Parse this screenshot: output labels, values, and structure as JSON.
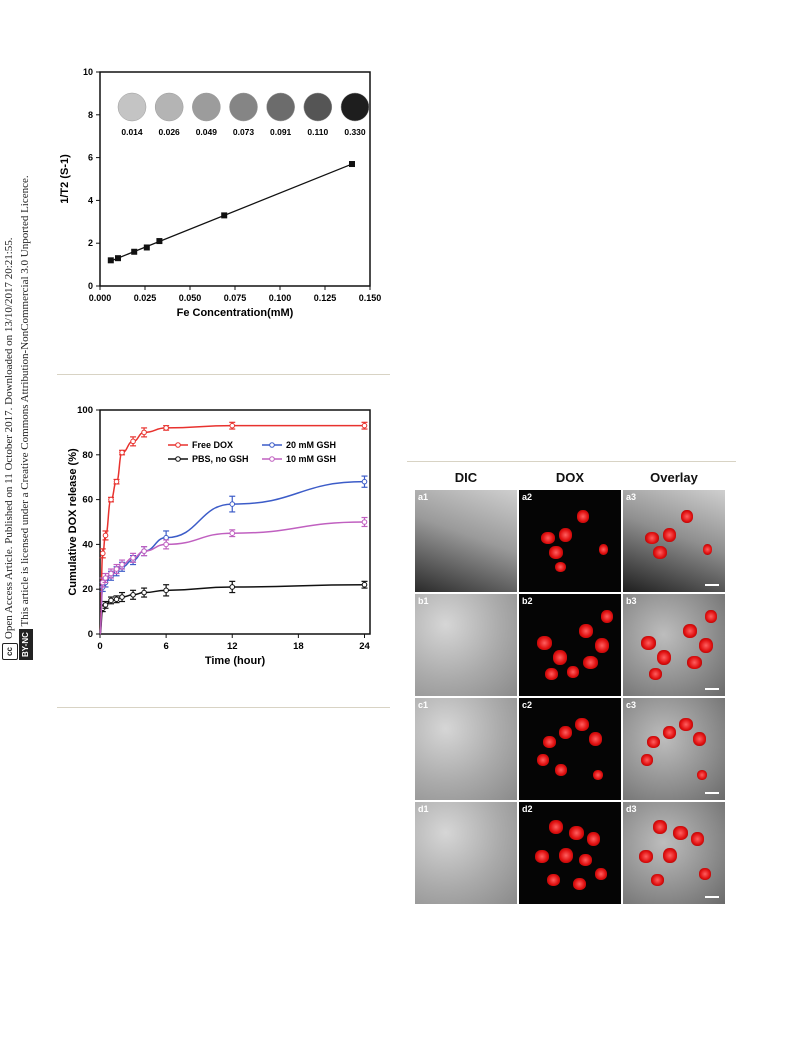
{
  "side_notice": {
    "line1": "Open Access Article. Published on 11 October 2017. Downloaded on 13/10/2017 20:21:55.",
    "line2": "This article is licensed under a Creative Commons Attribution-NonCommercial 3.0 Unported Licence.",
    "cc_badge": "cc",
    "license_badge": "BY-NC"
  },
  "figure_relaxivity": {
    "ylabel": "1/T2 (S-1)",
    "xlabel": "Fe Concentration(mM)",
    "xticks": [
      "0.000",
      "0.025",
      "0.050",
      "0.075",
      "0.100",
      "0.125",
      "0.150"
    ],
    "yticks": [
      "0",
      "2",
      "4",
      "6",
      "8",
      "10"
    ],
    "phantom_labels": [
      "0.014",
      "0.026",
      "0.049",
      "0.073",
      "0.091",
      "0.110",
      "0.330"
    ],
    "phantom_grays": [
      "#c4c4c4",
      "#b4b4b4",
      "#9c9c9c",
      "#858585",
      "#6c6c6c",
      "#555555",
      "#1e1e1e"
    ]
  },
  "figure_release": {
    "ylabel": "Cumulative DOX release (%)",
    "xlabel": "Time (hour)",
    "xticks": [
      "0",
      "6",
      "12",
      "18",
      "24"
    ],
    "yticks": [
      "0",
      "20",
      "40",
      "60",
      "80",
      "100"
    ]
  },
  "figure_micro": {
    "headers": [
      "DIC",
      "DOX",
      "Overlay"
    ],
    "panels": [
      [
        "a1",
        "a2",
        "a3"
      ],
      [
        "b1",
        "b2",
        "b3"
      ],
      [
        "c1",
        "c2",
        "c3"
      ],
      [
        "d1",
        "d2",
        "d3"
      ]
    ]
  },
  "chart_data": [
    {
      "type": "scatter",
      "title": "",
      "xlabel": "Fe Concentration(mM)",
      "ylabel": "1/T2 (S-1)",
      "xlim": [
        0.0,
        0.15
      ],
      "ylim": [
        0,
        10
      ],
      "series": [
        {
          "x": [
            0.006,
            0.01,
            0.019,
            0.026,
            0.033,
            0.069,
            0.14
          ],
          "y": [
            1.2,
            1.3,
            1.6,
            1.8,
            2.1,
            3.3,
            5.7
          ]
        }
      ],
      "fit": "linear"
    },
    {
      "type": "line",
      "title": "",
      "xlabel": "Time (hour)",
      "ylabel": "Cumulative DOX release (%)",
      "xlim": [
        0,
        24.5
      ],
      "ylim": [
        0,
        100
      ],
      "legend": "top-right",
      "series": [
        {
          "name": "Free DOX",
          "color": "#e8322e",
          "x": [
            0.25,
            0.5,
            1,
            1.5,
            2,
            3,
            4,
            6,
            12,
            24
          ],
          "y": [
            36,
            44,
            60,
            68,
            81,
            86,
            90,
            92,
            93,
            93
          ],
          "err": [
            2,
            2,
            1,
            1,
            1,
            2,
            2,
            1,
            1.5,
            1.5
          ]
        },
        {
          "name": "20 mM GSH",
          "color": "#3c5cc8",
          "x": [
            0.25,
            0.5,
            1,
            1.5,
            2,
            3,
            4,
            6,
            12,
            24
          ],
          "y": [
            21,
            23,
            26,
            28,
            30,
            33,
            37,
            43,
            58,
            68
          ],
          "err": [
            2,
            2,
            2,
            2,
            2,
            2,
            2,
            3,
            3.5,
            2.5
          ]
        },
        {
          "name": "PBS, no GSH",
          "color": "#111111",
          "x": [
            0.25,
            0.5,
            1,
            1.5,
            2,
            3,
            4,
            6,
            12,
            24
          ],
          "y": [
            11.5,
            13,
            15,
            15.5,
            16.5,
            17.5,
            18.5,
            19.5,
            21,
            22
          ],
          "err": [
            1.5,
            1.5,
            1.5,
            1.5,
            2,
            2,
            2,
            2.5,
            2.5,
            1.5
          ]
        },
        {
          "name": "10 mM GSH",
          "color": "#c060c0",
          "x": [
            0.25,
            0.5,
            1,
            1.5,
            2,
            3,
            4,
            6,
            12,
            24
          ],
          "y": [
            23,
            25,
            27,
            29,
            31,
            34,
            37,
            40,
            45,
            50
          ],
          "err": [
            2,
            2,
            2,
            2,
            2,
            2,
            2,
            2,
            1.5,
            2
          ]
        }
      ]
    }
  ]
}
